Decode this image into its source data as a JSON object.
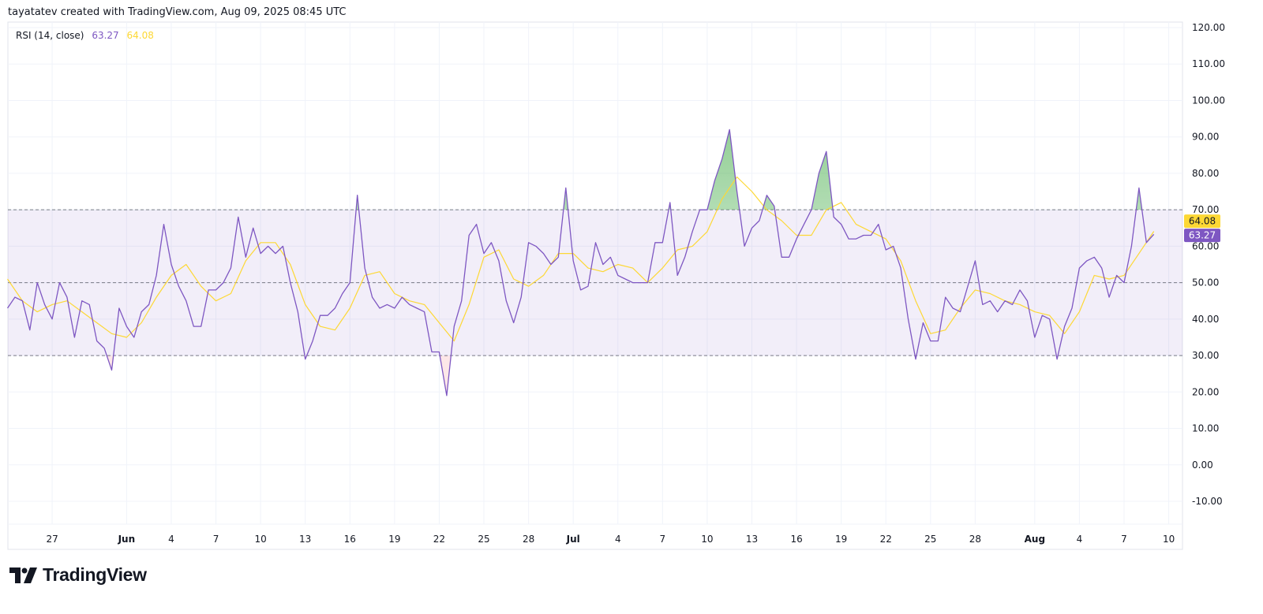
{
  "header": {
    "credit": "tayatatev created with TradingView.com, Aug 09, 2025 08:45 UTC"
  },
  "legend": {
    "title": "RSI (14, close)",
    "rsi_value": "63.27",
    "ma_value": "64.08"
  },
  "brand": {
    "name": "TradingView"
  },
  "colors": {
    "rsi": "#7e57c2",
    "ma": "#fdd835",
    "band": "#7e57c2",
    "overbought_fill": "#4caf50",
    "oversold_fill": "#f23645",
    "grid": "#f0f3fa",
    "levels": "#787b86"
  },
  "chart_data": {
    "type": "line",
    "title": "RSI (14, close)",
    "ylim": [
      -10,
      120
    ],
    "yticks": [
      "120.00",
      "110.00",
      "100.00",
      "90.00",
      "80.00",
      "70.00",
      "60.00",
      "50.00",
      "40.00",
      "30.00",
      "20.00",
      "10.00",
      "0.00",
      "-10.00"
    ],
    "levels": {
      "upper": 70,
      "middle": 50,
      "lower": 30
    },
    "grid": true,
    "xticks": [
      {
        "label": "27",
        "date": "2025-05-27"
      },
      {
        "label": "Jun",
        "date": "2025-06-01",
        "bold": true
      },
      {
        "label": "4",
        "date": "2025-06-04"
      },
      {
        "label": "7",
        "date": "2025-06-07"
      },
      {
        "label": "10",
        "date": "2025-06-10"
      },
      {
        "label": "13",
        "date": "2025-06-13"
      },
      {
        "label": "16",
        "date": "2025-06-16"
      },
      {
        "label": "19",
        "date": "2025-06-19"
      },
      {
        "label": "22",
        "date": "2025-06-22"
      },
      {
        "label": "25",
        "date": "2025-06-25"
      },
      {
        "label": "28",
        "date": "2025-06-28"
      },
      {
        "label": "Jul",
        "date": "2025-07-01",
        "bold": true
      },
      {
        "label": "4",
        "date": "2025-07-04"
      },
      {
        "label": "7",
        "date": "2025-07-07"
      },
      {
        "label": "10",
        "date": "2025-07-10"
      },
      {
        "label": "13",
        "date": "2025-07-13"
      },
      {
        "label": "16",
        "date": "2025-07-16"
      },
      {
        "label": "19",
        "date": "2025-07-19"
      },
      {
        "label": "22",
        "date": "2025-07-22"
      },
      {
        "label": "25",
        "date": "2025-07-25"
      },
      {
        "label": "28",
        "date": "2025-07-28"
      },
      {
        "label": "Aug",
        "date": "2025-08-01",
        "bold": true
      },
      {
        "label": "4",
        "date": "2025-08-04"
      },
      {
        "label": "7",
        "date": "2025-08-07"
      },
      {
        "label": "10",
        "date": "2025-08-10"
      }
    ],
    "last_values": {
      "ma": "64.08",
      "rsi": "63.27"
    },
    "series_columns": [
      "date",
      "rsi_00:00",
      "rsi_12:00",
      "ma"
    ],
    "rows": [
      [
        "2025-05-24",
        43,
        46,
        51
      ],
      [
        "2025-05-25",
        45,
        37,
        45
      ],
      [
        "2025-05-26",
        50,
        44,
        42
      ],
      [
        "2025-05-27",
        40,
        50,
        44
      ],
      [
        "2025-05-28",
        46,
        35,
        45
      ],
      [
        "2025-05-29",
        45,
        44,
        42
      ],
      [
        "2025-05-30",
        34,
        32,
        39
      ],
      [
        "2025-05-31",
        26,
        43,
        36
      ],
      [
        "2025-06-01",
        38,
        35,
        35
      ],
      [
        "2025-06-02",
        42,
        44,
        39
      ],
      [
        "2025-06-03",
        52,
        66,
        46
      ],
      [
        "2025-06-04",
        55,
        49,
        52
      ],
      [
        "2025-06-05",
        45,
        38,
        55
      ],
      [
        "2025-06-06",
        38,
        48,
        49
      ],
      [
        "2025-06-07",
        48,
        50,
        45
      ],
      [
        "2025-06-08",
        54,
        68,
        47
      ],
      [
        "2025-06-09",
        57,
        65,
        56
      ],
      [
        "2025-06-10",
        58,
        60,
        61
      ],
      [
        "2025-06-11",
        58,
        60,
        61
      ],
      [
        "2025-06-12",
        50,
        42,
        55
      ],
      [
        "2025-06-13",
        29,
        34,
        44
      ],
      [
        "2025-06-14",
        41,
        41,
        38
      ],
      [
        "2025-06-15",
        43,
        47,
        37
      ],
      [
        "2025-06-16",
        50,
        74,
        43
      ],
      [
        "2025-06-17",
        54,
        46,
        52
      ],
      [
        "2025-06-18",
        43,
        44,
        53
      ],
      [
        "2025-06-19",
        43,
        46,
        47
      ],
      [
        "2025-06-20",
        44,
        43,
        45
      ],
      [
        "2025-06-21",
        42,
        31,
        44
      ],
      [
        "2025-06-22",
        31,
        19,
        39
      ],
      [
        "2025-06-23",
        38,
        45,
        34
      ],
      [
        "2025-06-24",
        63,
        66,
        44
      ],
      [
        "2025-06-25",
        58,
        61,
        57
      ],
      [
        "2025-06-26",
        56,
        45,
        59
      ],
      [
        "2025-06-27",
        39,
        46,
        51
      ],
      [
        "2025-06-28",
        61,
        60,
        49
      ],
      [
        "2025-06-29",
        58,
        55,
        52
      ],
      [
        "2025-06-30",
        57,
        76,
        58
      ],
      [
        "2025-07-01",
        56,
        48,
        58
      ],
      [
        "2025-07-02",
        49,
        61,
        54
      ],
      [
        "2025-07-03",
        55,
        57,
        53
      ],
      [
        "2025-07-04",
        52,
        51,
        55
      ],
      [
        "2025-07-05",
        50,
        50,
        54
      ],
      [
        "2025-07-06",
        50,
        61,
        50
      ],
      [
        "2025-07-07",
        61,
        72,
        54
      ],
      [
        "2025-07-08",
        52,
        57,
        59
      ],
      [
        "2025-07-09",
        64,
        70,
        60
      ],
      [
        "2025-07-10",
        70,
        78,
        64
      ],
      [
        "2025-07-11",
        84,
        92,
        73
      ],
      [
        "2025-07-12",
        75,
        60,
        79
      ],
      [
        "2025-07-13",
        65,
        67,
        75
      ],
      [
        "2025-07-14",
        74,
        71,
        70
      ],
      [
        "2025-07-15",
        57,
        57,
        67
      ],
      [
        "2025-07-16",
        62,
        66,
        63
      ],
      [
        "2025-07-17",
        70,
        80,
        63
      ],
      [
        "2025-07-18",
        86,
        68,
        70
      ],
      [
        "2025-07-19",
        66,
        62,
        72
      ],
      [
        "2025-07-20",
        62,
        63,
        66
      ],
      [
        "2025-07-21",
        63,
        66,
        64
      ],
      [
        "2025-07-22",
        59,
        60,
        62
      ],
      [
        "2025-07-23",
        54,
        40,
        56
      ],
      [
        "2025-07-24",
        29,
        39,
        45
      ],
      [
        "2025-07-25",
        34,
        34,
        36
      ],
      [
        "2025-07-26",
        46,
        43,
        37
      ],
      [
        "2025-07-27",
        42,
        49,
        43
      ],
      [
        "2025-07-28",
        56,
        44,
        48
      ],
      [
        "2025-07-29",
        45,
        42,
        47
      ],
      [
        "2025-07-30",
        45,
        44,
        45
      ],
      [
        "2025-07-31",
        48,
        45,
        44
      ],
      [
        "2025-08-01",
        35,
        41,
        42
      ],
      [
        "2025-08-02",
        40,
        29,
        41
      ],
      [
        "2025-08-03",
        38,
        43,
        36
      ],
      [
        "2025-08-04",
        54,
        56,
        42
      ],
      [
        "2025-08-05",
        57,
        54,
        52
      ],
      [
        "2025-08-06",
        46,
        52,
        51
      ],
      [
        "2025-08-07",
        50,
        60,
        52
      ],
      [
        "2025-08-08",
        76,
        61,
        58
      ],
      [
        "2025-08-09",
        63.27,
        null,
        64.08
      ]
    ]
  }
}
